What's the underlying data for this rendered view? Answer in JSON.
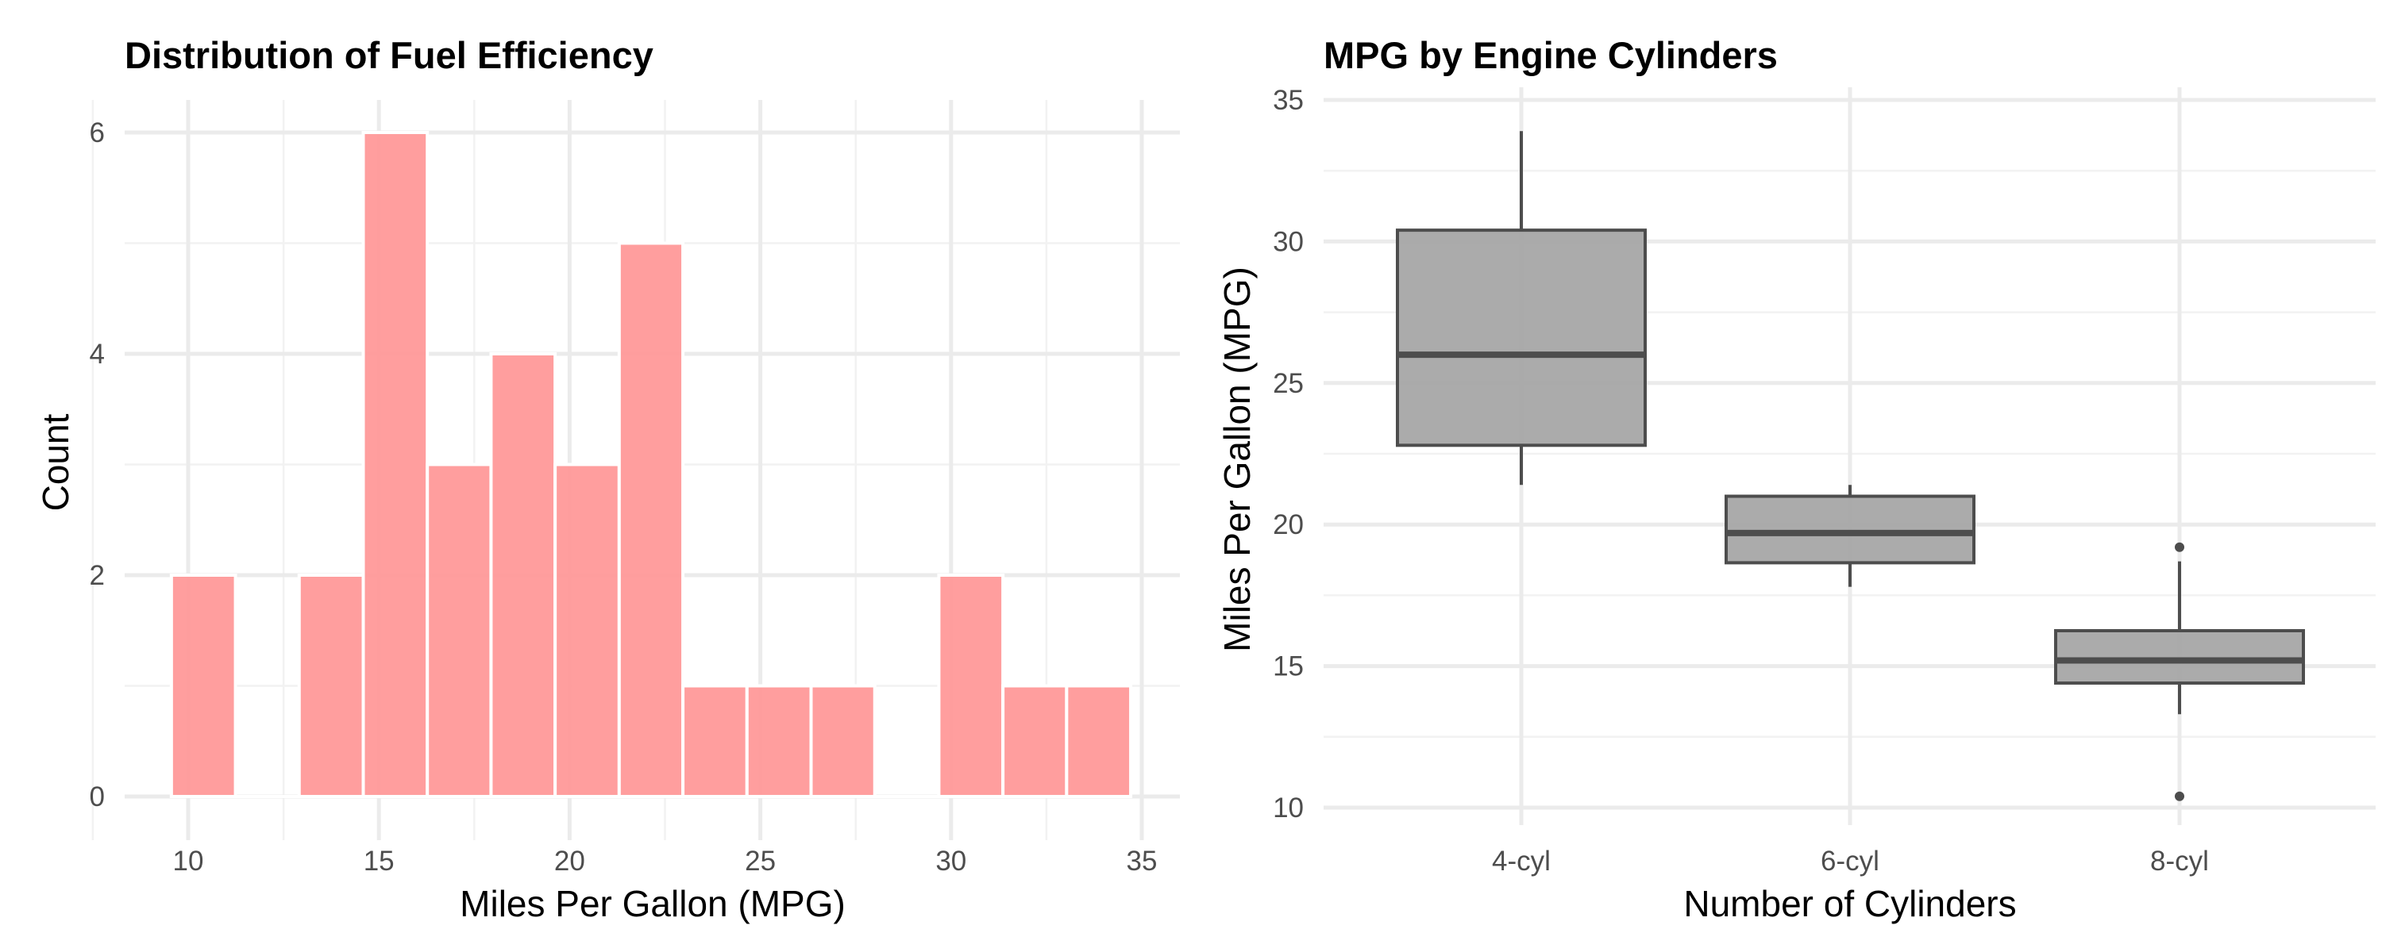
{
  "chart_data": [
    {
      "type": "bar",
      "subtype": "histogram",
      "title": "Distribution of Fuel Efficiency",
      "xlabel": "Miles Per Gallon (MPG)",
      "ylabel": "Count",
      "xlim": [
        9.0,
        35.5
      ],
      "ylim": [
        0,
        6.3
      ],
      "x_ticks": [
        10,
        15,
        20,
        25,
        30,
        35
      ],
      "y_ticks": [
        0,
        2,
        4,
        6
      ],
      "grid": true,
      "bar_color": "#ff9999",
      "bins": [
        {
          "x0": 9.56,
          "x1": 11.24,
          "count": 2
        },
        {
          "x0": 11.24,
          "x1": 12.91,
          "count": 0
        },
        {
          "x0": 12.91,
          "x1": 14.59,
          "count": 2
        },
        {
          "x0": 14.59,
          "x1": 16.27,
          "count": 6
        },
        {
          "x0": 16.27,
          "x1": 17.94,
          "count": 3
        },
        {
          "x0": 17.94,
          "x1": 19.62,
          "count": 4
        },
        {
          "x0": 19.62,
          "x1": 21.3,
          "count": 3
        },
        {
          "x0": 21.3,
          "x1": 22.97,
          "count": 5
        },
        {
          "x0": 22.97,
          "x1": 24.65,
          "count": 1
        },
        {
          "x0": 24.65,
          "x1": 26.33,
          "count": 1
        },
        {
          "x0": 26.33,
          "x1": 28.0,
          "count": 1
        },
        {
          "x0": 28.0,
          "x1": 29.68,
          "count": 0
        },
        {
          "x0": 29.68,
          "x1": 31.36,
          "count": 2
        },
        {
          "x0": 31.36,
          "x1": 33.03,
          "count": 1
        },
        {
          "x0": 33.03,
          "x1": 34.71,
          "count": 1
        }
      ],
      "categories": [
        "9.6-11.2",
        "11.2-12.9",
        "12.9-14.6",
        "14.6-16.3",
        "16.3-17.9",
        "17.9-19.6",
        "19.6-21.3",
        "21.3-23.0",
        "23.0-24.7",
        "24.7-26.3",
        "26.3-28.0",
        "28.0-29.7",
        "29.7-31.4",
        "31.4-33.0",
        "33.0-34.7"
      ],
      "values": [
        2,
        0,
        2,
        6,
        3,
        4,
        3,
        5,
        1,
        1,
        1,
        0,
        2,
        1,
        1
      ]
    },
    {
      "type": "box",
      "title": "MPG by Engine Cylinders",
      "xlabel": "Number of Cylinders",
      "ylabel": "Miles Per Gallon (MPG)",
      "ylim": [
        10,
        35
      ],
      "y_ticks": [
        10,
        15,
        20,
        25,
        30,
        35
      ],
      "grid": true,
      "box_fill": "#a6a6a6",
      "box_stroke": "#4d4d4d",
      "categories": [
        "4-cyl",
        "6-cyl",
        "8-cyl"
      ],
      "series": [
        {
          "name": "4-cyl",
          "min": 21.4,
          "q1": 22.8,
          "median": 26.0,
          "q3": 30.4,
          "max": 33.9,
          "outliers": []
        },
        {
          "name": "6-cyl",
          "min": 17.8,
          "q1": 18.65,
          "median": 19.7,
          "q3": 21.0,
          "max": 21.4,
          "outliers": []
        },
        {
          "name": "8-cyl",
          "min": 13.3,
          "q1": 14.4,
          "median": 15.2,
          "q3": 16.25,
          "max": 18.7,
          "outliers": [
            10.4,
            19.2
          ]
        }
      ]
    }
  ],
  "left": {
    "title": "Distribution of Fuel Efficiency",
    "xlabel": "Miles Per Gallon (MPG)",
    "ylabel": "Count"
  },
  "right": {
    "title": "MPG by Engine Cylinders",
    "xlabel": "Number of Cylinders",
    "ylabel": "Miles Per Gallon (MPG)"
  }
}
